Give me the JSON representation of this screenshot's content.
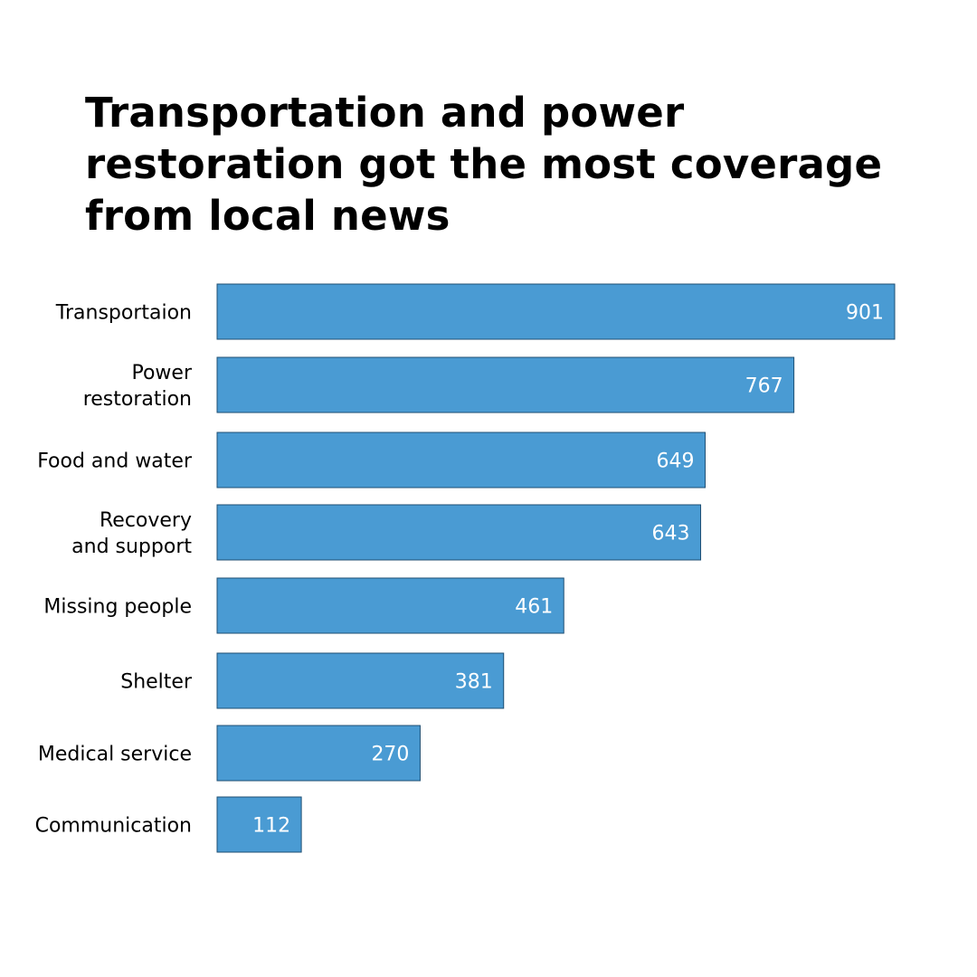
{
  "chart_data": {
    "type": "bar",
    "orientation": "horizontal",
    "title": "Transportation and power restoration got the most coverage from local news",
    "categories": [
      "Transportaion",
      "Power restoration",
      "Food and water",
      "Recovery and support",
      "Missing people",
      "Shelter",
      "Medical service",
      "Communication"
    ],
    "category_lines": [
      [
        "Transportaion"
      ],
      [
        "Power",
        "restoration"
      ],
      [
        "Food and water"
      ],
      [
        "Recovery",
        "and support"
      ],
      [
        "Missing people"
      ],
      [
        "Shelter"
      ],
      [
        "Medical service"
      ],
      [
        "Communication"
      ]
    ],
    "values": [
      901,
      767,
      649,
      643,
      461,
      381,
      270,
      112
    ],
    "data_labels": true,
    "xlim": [
      0,
      901
    ],
    "grid": false,
    "legend": "none",
    "xlabel": "",
    "ylabel": "",
    "colors": {
      "bar": "#4a9bd3",
      "bar_border": "#1f4f73",
      "value_text": "#ffffff",
      "label_text": "#000000"
    }
  }
}
